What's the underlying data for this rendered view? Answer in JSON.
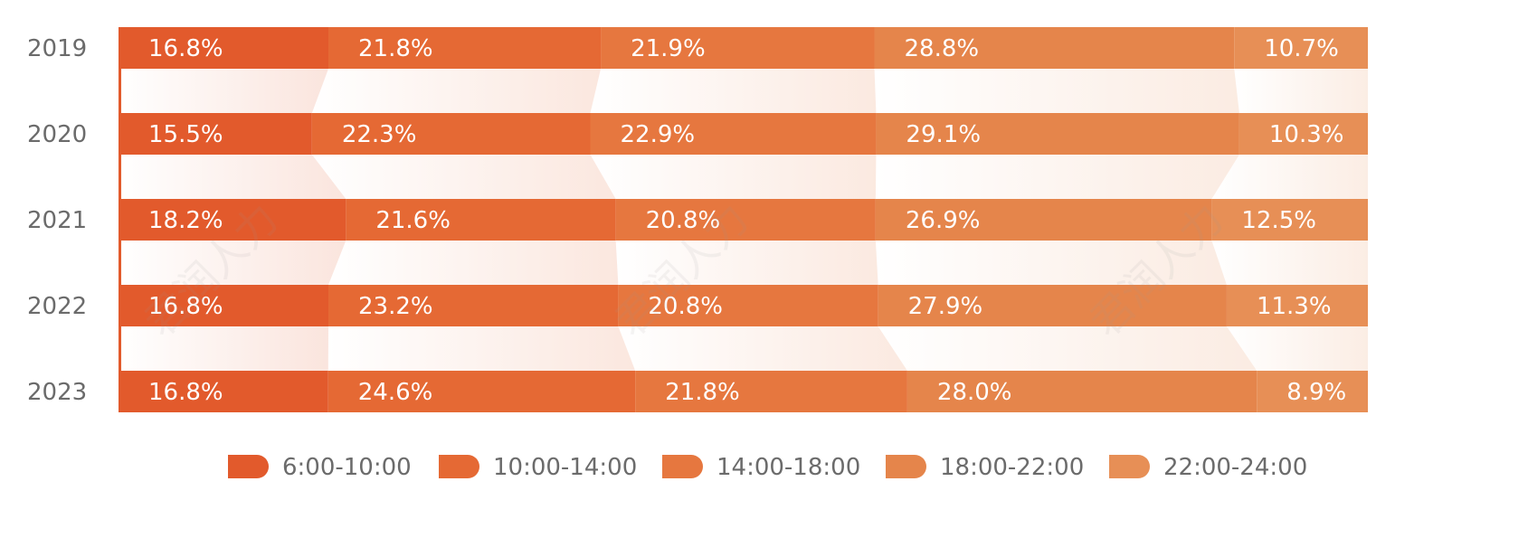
{
  "chart_data": {
    "type": "bar",
    "stacked": true,
    "orientation": "horizontal",
    "percent_stacked": true,
    "categories": [
      "2019",
      "2020",
      "2021",
      "2022",
      "2023"
    ],
    "series": [
      {
        "name": "6:00-10:00",
        "color": "#E25A2C",
        "values": [
          16.8,
          15.5,
          18.2,
          16.8,
          16.8
        ],
        "labels": [
          "16.8%",
          "15.5%",
          "18.2%",
          "16.8%",
          "16.8%"
        ]
      },
      {
        "name": "10:00-14:00",
        "color": "#E56934",
        "values": [
          21.8,
          22.3,
          21.6,
          23.2,
          24.6
        ],
        "labels": [
          "21.8%",
          "22.3%",
          "21.6%",
          "23.2%",
          "24.6%"
        ]
      },
      {
        "name": "14:00-18:00",
        "color": "#E6773F",
        "values": [
          21.9,
          22.9,
          20.8,
          20.8,
          21.8
        ],
        "labels": [
          "21.9%",
          "22.9%",
          "20.8%",
          "20.8%",
          "21.8%"
        ]
      },
      {
        "name": "18:00-22:00",
        "color": "#E5854B",
        "values": [
          28.8,
          29.1,
          26.9,
          27.9,
          28.0
        ],
        "labels": [
          "28.8%",
          "29.1%",
          "26.9%",
          "27.9%",
          "28.0%"
        ]
      },
      {
        "name": "22:00-24:00",
        "color": "#E78F56",
        "values": [
          10.7,
          10.3,
          12.5,
          11.3,
          8.9
        ],
        "labels": [
          "10.7%",
          "10.3%",
          "12.5%",
          "11.3%",
          "8.9%"
        ]
      }
    ],
    "xlim": [
      0,
      100
    ],
    "grid": false,
    "legend_position": "bottom"
  },
  "watermark": {
    "text": "君润人力"
  }
}
